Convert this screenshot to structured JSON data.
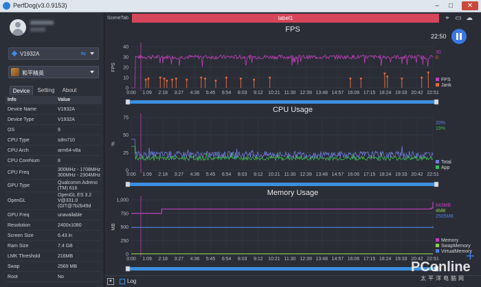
{
  "app": {
    "title": "PerfDog(v3.0.9153)"
  },
  "window": {
    "minimize": "–",
    "maximize": "□",
    "close": "✕"
  },
  "sidebar": {
    "device_dropdown": {
      "label": "V1932A",
      "icon": "android-diamond-icon",
      "conn_icon": "usb-icon"
    },
    "app_dropdown": {
      "label": "和平精英",
      "icon": "game-icon"
    },
    "tabs": [
      "Device",
      "Setting",
      "About"
    ],
    "info_header": {
      "key": "Info",
      "value": "Value"
    },
    "info_rows": [
      {
        "key": "Device Name",
        "value": "V1932A"
      },
      {
        "key": "Device Type",
        "value": "V1932A"
      },
      {
        "key": "OS",
        "value": "9"
      },
      {
        "key": "CPU Type",
        "value": "sdm710"
      },
      {
        "key": "CPU Arch",
        "value": "arm64-v8a"
      },
      {
        "key": "CPU CoreNum",
        "value": "8"
      },
      {
        "key": "CPU Freq",
        "value": "300MHz - 1708MHz\n300MHz - 2304MHz"
      },
      {
        "key": "GPU Type",
        "value": "Qualcomm Adreno\n(TM) 616"
      },
      {
        "key": "OpenGL",
        "value": "OpenGL ES 3.2\nV@331.0\n(GIT@7b2b49d"
      },
      {
        "key": "GPU Freq",
        "value": "unavailable"
      },
      {
        "key": "Resolution",
        "value": "2400x1080"
      },
      {
        "key": "Screen Size",
        "value": "6.43 in"
      },
      {
        "key": "Ram Size",
        "value": "7.4 GB"
      },
      {
        "key": "LMK Threshold",
        "value": "216MB"
      },
      {
        "key": "Swap",
        "value": "2569 MB"
      },
      {
        "key": "Root",
        "value": "No"
      }
    ]
  },
  "toolbar": {
    "scene_tab": "SceneTab",
    "label": "label1",
    "icons": [
      "location-icon",
      "folder-icon",
      "cloud-icon"
    ]
  },
  "session": {
    "time": "22:50"
  },
  "bottom": {
    "log_label": "Log"
  },
  "watermark": {
    "brand": "PConline",
    "sub": "太平洋电脑网"
  },
  "time_ticks": [
    "0:00",
    "1:09",
    "2:18",
    "3:27",
    "4:36",
    "5:45",
    "6:54",
    "8:03",
    "9:12",
    "10:21",
    "11:30",
    "12:39",
    "13:48",
    "14:57",
    "16:06",
    "17:15",
    "18:24",
    "19:33",
    "20:42",
    "22:51"
  ],
  "chart_data": [
    {
      "type": "line",
      "title": "FPS",
      "ylabel": "FPS",
      "ylim": [
        0,
        40
      ],
      "yticks": [
        0,
        10,
        20,
        30,
        40
      ],
      "series": [
        {
          "name": "FPS",
          "color": "#c43fbf",
          "current": "30",
          "base": 30,
          "noise": 2
        },
        {
          "name": "Jank",
          "color": "#e2683a",
          "current": "0",
          "style": "spikes",
          "x_min": [
            1.1,
            1.3,
            2.2,
            2.5,
            2.7,
            3.1,
            3.4,
            4.2,
            5.3,
            5.6,
            6.4,
            7.2,
            8.3,
            9.3,
            10.5,
            16.6,
            17.4,
            19.2,
            19.4,
            20.5,
            22.0,
            22.5
          ],
          "heights": [
            8,
            9,
            10,
            9,
            7,
            8,
            9,
            8,
            10,
            9,
            7,
            10,
            9,
            8,
            10,
            9,
            9,
            14,
            11,
            9,
            10,
            15
          ]
        }
      ],
      "legend": "bottom-right",
      "grid": true
    },
    {
      "type": "line",
      "title": "CPU Usage",
      "ylabel": "%",
      "ylim": [
        0,
        75
      ],
      "yticks": [
        0,
        25,
        50,
        75
      ],
      "series": [
        {
          "name": "Total",
          "color": "#6f7fe0",
          "current": "20%",
          "base": 22,
          "noise": 5
        },
        {
          "name": "App",
          "color": "#3fbf55",
          "current": "19%",
          "base": 17,
          "noise": 3
        }
      ],
      "legend": "bottom-right",
      "grid": true
    },
    {
      "type": "line",
      "title": "Memory Usage",
      "ylabel": "MB",
      "ylim": [
        0,
        1000
      ],
      "yticks": [
        0,
        250,
        500,
        750,
        "1,000"
      ],
      "series": [
        {
          "name": "Memory",
          "color": "#c43fbf",
          "current": "843MB",
          "steps": [
            [
              0,
              750
            ],
            [
              2.3,
              830
            ],
            [
              22.7,
              845
            ],
            [
              22.85,
              960
            ]
          ]
        },
        {
          "name": "SwapMemory",
          "color": "#8fd04a",
          "current": "4MB",
          "steps": [
            [
              0,
              4
            ]
          ]
        },
        {
          "name": "VirtualMemory",
          "color": "#4e7fe0",
          "current": "2505MB",
          "steps": [
            [
              0,
              490
            ],
            [
              22.85,
              510
            ]
          ]
        }
      ],
      "legend": "bottom-right",
      "grid": true
    }
  ]
}
